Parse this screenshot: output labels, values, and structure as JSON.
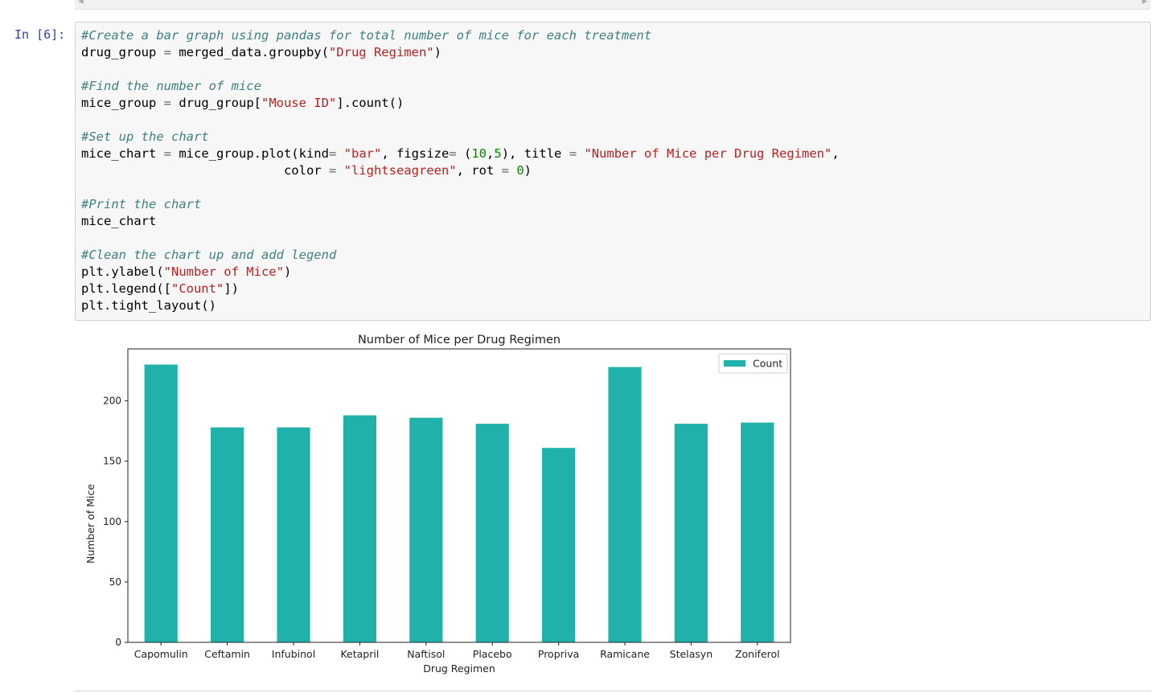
{
  "cell": {
    "prompt": "In [6]:",
    "code_lines": [
      [
        {
          "t": "#Create a bar graph using pandas for total number of mice for each treatment",
          "c": "com"
        }
      ],
      [
        {
          "t": "drug_group "
        },
        {
          "t": "=",
          "c": "op"
        },
        {
          "t": " merged_data.groupby("
        },
        {
          "t": "\"Drug Regimen\"",
          "c": "str"
        },
        {
          "t": ")"
        }
      ],
      [],
      [
        {
          "t": "#Find the number of mice",
          "c": "com"
        }
      ],
      [
        {
          "t": "mice_group "
        },
        {
          "t": "=",
          "c": "op"
        },
        {
          "t": " drug_group["
        },
        {
          "t": "\"Mouse ID\"",
          "c": "str"
        },
        {
          "t": "].count()"
        }
      ],
      [],
      [
        {
          "t": "#Set up the chart",
          "c": "com"
        }
      ],
      [
        {
          "t": "mice_chart "
        },
        {
          "t": "=",
          "c": "op"
        },
        {
          "t": " mice_group.plot(kind"
        },
        {
          "t": "=",
          "c": "op"
        },
        {
          "t": " "
        },
        {
          "t": "\"bar\"",
          "c": "str"
        },
        {
          "t": ", figsize"
        },
        {
          "t": "=",
          "c": "op"
        },
        {
          "t": " ("
        },
        {
          "t": "10",
          "c": "num"
        },
        {
          "t": ","
        },
        {
          "t": "5",
          "c": "num"
        },
        {
          "t": "), title "
        },
        {
          "t": "=",
          "c": "op"
        },
        {
          "t": " "
        },
        {
          "t": "\"Number of Mice per Drug Regimen\"",
          "c": "str"
        },
        {
          "t": ","
        }
      ],
      [
        {
          "t": "                           color "
        },
        {
          "t": "=",
          "c": "op"
        },
        {
          "t": " "
        },
        {
          "t": "\"lightseagreen\"",
          "c": "str"
        },
        {
          "t": ", rot "
        },
        {
          "t": "=",
          "c": "op"
        },
        {
          "t": " "
        },
        {
          "t": "0",
          "c": "num"
        },
        {
          "t": ")"
        }
      ],
      [],
      [
        {
          "t": "#Print the chart",
          "c": "com"
        }
      ],
      [
        {
          "t": "mice_chart"
        }
      ],
      [],
      [
        {
          "t": "#Clean the chart up and add legend",
          "c": "com"
        }
      ],
      [
        {
          "t": "plt.ylabel("
        },
        {
          "t": "\"Number of Mice\"",
          "c": "str"
        },
        {
          "t": ")"
        }
      ],
      [
        {
          "t": "plt.legend(["
        },
        {
          "t": "\"Count\"",
          "c": "str"
        },
        {
          "t": "])"
        }
      ],
      [
        {
          "t": "plt.tight_layout()"
        }
      ]
    ]
  },
  "chart_data": {
    "type": "bar",
    "title": "Number of Mice per Drug Regimen",
    "xlabel": "Drug Regimen",
    "ylabel": "Number of Mice",
    "categories": [
      "Capomulin",
      "Ceftamin",
      "Infubinol",
      "Ketapril",
      "Naftisol",
      "Placebo",
      "Propriva",
      "Ramicane",
      "Stelasyn",
      "Zoniferol"
    ],
    "values": [
      230,
      178,
      178,
      188,
      186,
      181,
      161,
      228,
      181,
      182
    ],
    "ylim": [
      0,
      243
    ],
    "yticks": [
      0,
      50,
      100,
      150,
      200
    ],
    "color": "#20b2aa",
    "legend": {
      "label": "Count",
      "position": "top-right"
    },
    "grid": false
  }
}
